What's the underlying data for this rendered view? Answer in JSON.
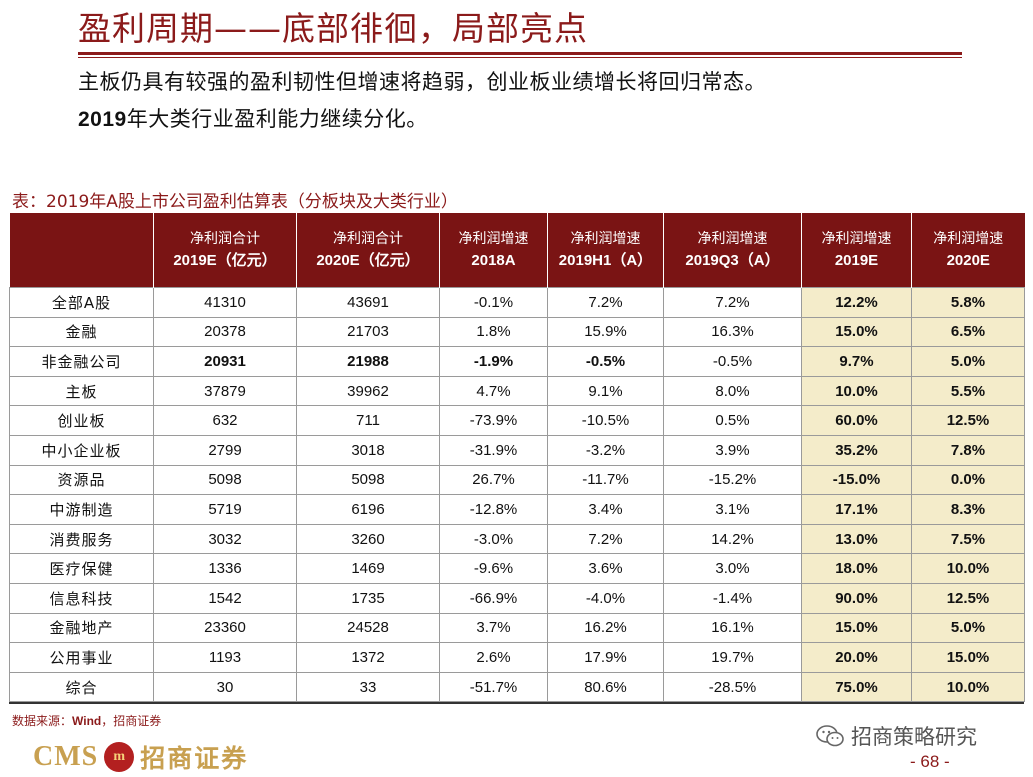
{
  "slide": {
    "title": "盈利周期——底部徘徊，局部亮点",
    "subtitle_line1": "主板仍具有较强的盈利韧性但增速将趋弱，创业板业绩增长将回归常态。",
    "subtitle_line2_year": "2019",
    "subtitle_line2_rest": "年大类行业盈利能力继续分化。"
  },
  "table": {
    "caption": "表：2019年A股上市公司盈利估算表（分板块及大类行业）",
    "headers": [
      {
        "l1": "",
        "l2": ""
      },
      {
        "l1": "净利润合计",
        "l2": "2019E（亿元）"
      },
      {
        "l1": "净利润合计",
        "l2": "2020E（亿元）"
      },
      {
        "l1": "净利润增速",
        "l2": "2018A"
      },
      {
        "l1": "净利润增速",
        "l2": "2019H1（A）"
      },
      {
        "l1": "净利润增速",
        "l2": "2019Q3（A）"
      },
      {
        "l1": "净利润增速",
        "l2": "2019E"
      },
      {
        "l1": "净利润增速",
        "l2": "2020E"
      }
    ],
    "rows": [
      [
        "全部A股",
        "41310",
        "43691",
        "-0.1%",
        "7.2%",
        "7.2%",
        "12.2%",
        "5.8%"
      ],
      [
        "金融",
        "20378",
        "21703",
        "1.8%",
        "15.9%",
        "16.3%",
        "15.0%",
        "6.5%"
      ],
      [
        "非金融公司",
        "20931",
        "21988",
        "-1.9%",
        "-0.5%",
        "-0.5%",
        "9.7%",
        "5.0%"
      ],
      [
        "主板",
        "37879",
        "39962",
        "4.7%",
        "9.1%",
        "8.0%",
        "10.0%",
        "5.5%"
      ],
      [
        "创业板",
        "632",
        "711",
        "-73.9%",
        "-10.5%",
        "0.5%",
        "60.0%",
        "12.5%"
      ],
      [
        "中小企业板",
        "2799",
        "3018",
        "-31.9%",
        "-3.2%",
        "3.9%",
        "35.2%",
        "7.8%"
      ],
      [
        "资源品",
        "5098",
        "5098",
        "26.7%",
        "-11.7%",
        "-15.2%",
        "-15.0%",
        "0.0%"
      ],
      [
        "中游制造",
        "5719",
        "6196",
        "-12.8%",
        "3.4%",
        "3.1%",
        "17.1%",
        "8.3%"
      ],
      [
        "消费服务",
        "3032",
        "3260",
        "-3.0%",
        "7.2%",
        "14.2%",
        "13.0%",
        "7.5%"
      ],
      [
        "医疗保健",
        "1336",
        "1469",
        "-9.6%",
        "3.6%",
        "3.0%",
        "18.0%",
        "10.0%"
      ],
      [
        "信息科技",
        "1542",
        "1735",
        "-66.9%",
        "-4.0%",
        "-1.4%",
        "90.0%",
        "12.5%"
      ],
      [
        "金融地产",
        "23360",
        "24528",
        "3.7%",
        "16.2%",
        "16.1%",
        "15.0%",
        "5.0%"
      ],
      [
        "公用事业",
        "1193",
        "1372",
        "2.6%",
        "17.9%",
        "19.7%",
        "20.0%",
        "15.0%"
      ],
      [
        "综合",
        "30",
        "33",
        "-51.7%",
        "80.6%",
        "-28.5%",
        "75.0%",
        "10.0%"
      ]
    ]
  },
  "footer": {
    "source_prefix": "数据来源：",
    "source_wind": "Wind",
    "source_rest": "，招商证券",
    "logo_cms": "CMS",
    "logo_emblem": "m",
    "logo_cn": "招商证券",
    "wechat_text": "招商策略研究",
    "page_number": "- 68 -"
  },
  "colors": {
    "accent": "#8b1a1a",
    "header_bg": "#7a1414",
    "highlight_bg": "#f4ecca",
    "logo_gold": "#c8a050"
  }
}
